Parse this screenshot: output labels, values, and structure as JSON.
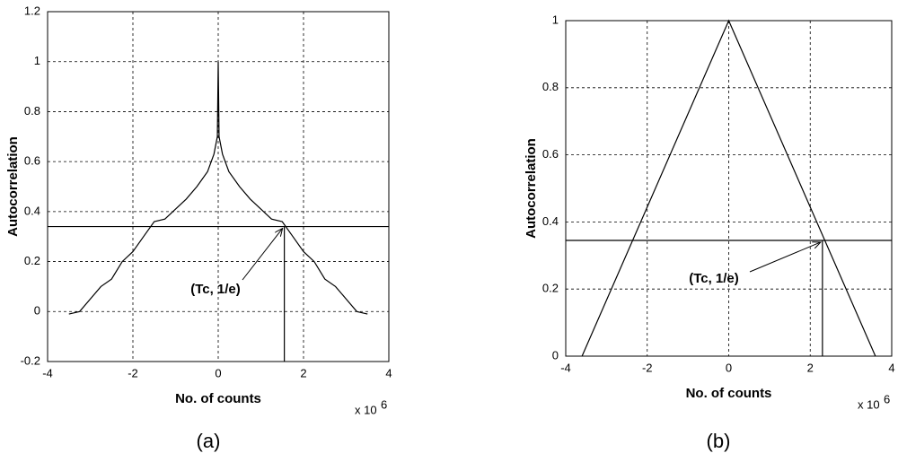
{
  "chart_data": [
    {
      "type": "line",
      "caption": "(a)",
      "x_label": "No. of counts",
      "y_label": "Autocorrelation",
      "x_multiplier": "x 10",
      "x_multiplier_exp": "6",
      "annotation": "(Tc, 1/e)",
      "hline": 0.34,
      "vline": 1.55,
      "grid": true,
      "color": "#000000",
      "xlim": [
        -4,
        4
      ],
      "ylim": [
        -0.2,
        1.2
      ],
      "xticks": [
        -4,
        -2,
        0,
        2,
        4
      ],
      "yticks": [
        -0.2,
        0,
        0.2,
        0.4,
        0.6,
        0.8,
        1,
        1.2
      ],
      "x": [
        -3.5,
        -3.25,
        -3.0,
        -2.75,
        -2.5,
        -2.25,
        -2.0,
        -1.75,
        -1.5,
        -1.25,
        -1.0,
        -0.75,
        -0.5,
        -0.25,
        -0.1,
        -0.02,
        0,
        0.02,
        0.1,
        0.25,
        0.5,
        0.75,
        1.0,
        1.25,
        1.5,
        1.75,
        2.0,
        2.25,
        2.5,
        2.75,
        3.0,
        3.25,
        3.5
      ],
      "values": [
        -0.01,
        0.0,
        0.05,
        0.1,
        0.13,
        0.2,
        0.24,
        0.3,
        0.36,
        0.37,
        0.41,
        0.45,
        0.5,
        0.56,
        0.63,
        0.7,
        1.0,
        0.7,
        0.63,
        0.56,
        0.5,
        0.45,
        0.41,
        0.37,
        0.36,
        0.3,
        0.24,
        0.2,
        0.13,
        0.1,
        0.05,
        0.0,
        -0.01
      ]
    },
    {
      "type": "line",
      "caption": "(b)",
      "x_label": "No. of counts",
      "y_label": "Autocorrelation",
      "x_multiplier": "x 10",
      "x_multiplier_exp": "6",
      "annotation": "(Tc, 1/e)",
      "hline": 0.345,
      "vline": 2.3,
      "grid": true,
      "color": "#000000",
      "xlim": [
        -4,
        4
      ],
      "ylim": [
        0,
        1
      ],
      "xticks": [
        -4,
        -2,
        0,
        2,
        4
      ],
      "yticks": [
        0,
        0.2,
        0.4,
        0.6,
        0.8,
        1
      ],
      "x": [
        -3.6,
        0,
        3.6
      ],
      "values": [
        0,
        1,
        0
      ]
    }
  ]
}
